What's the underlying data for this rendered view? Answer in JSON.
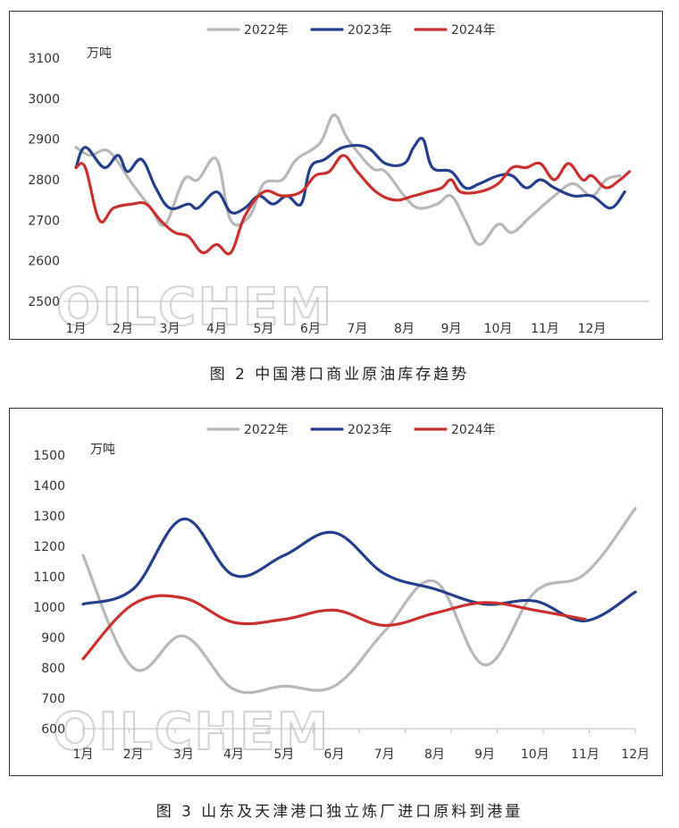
{
  "charts": [
    {
      "caption": "图 2  中国港口商业原油库存趋势",
      "unit": "万吨",
      "watermark": "OILCHEM",
      "chart_data": {
        "type": "line",
        "x_labels": [
          "1月",
          "2月",
          "3月",
          "4月",
          "5月",
          "6月",
          "7月",
          "8月",
          "9月",
          "10月",
          "11月",
          "12月"
        ],
        "ylim": [
          2500,
          3100
        ],
        "yticks": [
          2500,
          2600,
          2700,
          2800,
          2900,
          3000,
          3100
        ],
        "legend_position": "top",
        "series": [
          {
            "name": "2022年",
            "color": "#b8b8b8",
            "points": [
              [
                1,
                2880
              ],
              [
                1.3,
                2860
              ],
              [
                1.7,
                2870
              ],
              [
                2.2,
                2790
              ],
              [
                2.6,
                2730
              ],
              [
                2.9,
                2690
              ],
              [
                3.3,
                2800
              ],
              [
                3.6,
                2800
              ],
              [
                4.0,
                2850
              ],
              [
                4.3,
                2700
              ],
              [
                4.7,
                2710
              ],
              [
                5.0,
                2790
              ],
              [
                5.4,
                2800
              ],
              [
                5.7,
                2850
              ],
              [
                6.2,
                2890
              ],
              [
                6.5,
                2960
              ],
              [
                6.8,
                2900
              ],
              [
                7.3,
                2830
              ],
              [
                7.6,
                2820
              ],
              [
                8.0,
                2760
              ],
              [
                8.3,
                2730
              ],
              [
                8.7,
                2740
              ],
              [
                9.0,
                2760
              ],
              [
                9.3,
                2700
              ],
              [
                9.6,
                2640
              ],
              [
                10.0,
                2690
              ],
              [
                10.3,
                2670
              ],
              [
                10.7,
                2710
              ],
              [
                11.2,
                2760
              ],
              [
                11.6,
                2790
              ],
              [
                12.0,
                2760
              ],
              [
                12.3,
                2800
              ],
              [
                12.6,
                2810
              ]
            ]
          },
          {
            "name": "2023年",
            "color": "#253f8a",
            "points": [
              [
                1,
                2830
              ],
              [
                1.2,
                2880
              ],
              [
                1.6,
                2830
              ],
              [
                1.9,
                2860
              ],
              [
                2.1,
                2820
              ],
              [
                2.4,
                2850
              ],
              [
                2.7,
                2780
              ],
              [
                3.0,
                2730
              ],
              [
                3.4,
                2740
              ],
              [
                3.6,
                2730
              ],
              [
                4.0,
                2770
              ],
              [
                4.3,
                2720
              ],
              [
                4.6,
                2730
              ],
              [
                4.9,
                2760
              ],
              [
                5.2,
                2740
              ],
              [
                5.5,
                2760
              ],
              [
                5.8,
                2740
              ],
              [
                6.0,
                2830
              ],
              [
                6.3,
                2850
              ],
              [
                6.7,
                2880
              ],
              [
                7.2,
                2880
              ],
              [
                7.6,
                2840
              ],
              [
                8.0,
                2840
              ],
              [
                8.2,
                2880
              ],
              [
                8.4,
                2900
              ],
              [
                8.6,
                2830
              ],
              [
                9.0,
                2820
              ],
              [
                9.3,
                2780
              ],
              [
                9.6,
                2790
              ],
              [
                10.0,
                2810
              ],
              [
                10.3,
                2810
              ],
              [
                10.6,
                2780
              ],
              [
                10.9,
                2800
              ],
              [
                11.2,
                2780
              ],
              [
                11.6,
                2760
              ],
              [
                12.0,
                2760
              ],
              [
                12.4,
                2730
              ],
              [
                12.7,
                2770
              ]
            ]
          },
          {
            "name": "2024年",
            "color": "#c8312e",
            "points": [
              [
                1,
                2830
              ],
              [
                1.2,
                2830
              ],
              [
                1.5,
                2700
              ],
              [
                1.8,
                2730
              ],
              [
                2.2,
                2740
              ],
              [
                2.5,
                2740
              ],
              [
                2.8,
                2700
              ],
              [
                3.1,
                2670
              ],
              [
                3.4,
                2660
              ],
              [
                3.7,
                2620
              ],
              [
                4.0,
                2640
              ],
              [
                4.3,
                2620
              ],
              [
                4.6,
                2710
              ],
              [
                5.0,
                2770
              ],
              [
                5.4,
                2760
              ],
              [
                5.8,
                2770
              ],
              [
                6.1,
                2810
              ],
              [
                6.4,
                2820
              ],
              [
                6.7,
                2860
              ],
              [
                7.0,
                2820
              ],
              [
                7.4,
                2770
              ],
              [
                7.8,
                2750
              ],
              [
                8.2,
                2760
              ],
              [
                8.5,
                2770
              ],
              [
                8.8,
                2780
              ],
              [
                9.0,
                2800
              ],
              [
                9.2,
                2770
              ],
              [
                9.6,
                2770
              ],
              [
                10.0,
                2790
              ],
              [
                10.3,
                2830
              ],
              [
                10.6,
                2830
              ],
              [
                10.9,
                2840
              ],
              [
                11.2,
                2800
              ],
              [
                11.5,
                2840
              ],
              [
                11.8,
                2800
              ],
              [
                12.0,
                2810
              ],
              [
                12.3,
                2780
              ],
              [
                12.6,
                2800
              ],
              [
                12.8,
                2820
              ]
            ]
          }
        ]
      }
    },
    {
      "caption": "图 3  山东及天津港口独立炼厂进口原料到港量",
      "unit": "万吨",
      "watermark": "OILCHEM",
      "chart_data": {
        "type": "line",
        "x_labels": [
          "1月",
          "2月",
          "3月",
          "4月",
          "5月",
          "6月",
          "7月",
          "8月",
          "9月",
          "10月",
          "11月",
          "12月"
        ],
        "ylim": [
          600,
          1500
        ],
        "yticks": [
          600,
          700,
          800,
          900,
          1000,
          1100,
          1200,
          1300,
          1400,
          1500
        ],
        "legend_position": "top",
        "series": [
          {
            "name": "2022年",
            "color": "#b8b8b8",
            "points": [
              [
                1,
                1170
              ],
              [
                2,
                800
              ],
              [
                3,
                905
              ],
              [
                4,
                730
              ],
              [
                5,
                740
              ],
              [
                6,
                740
              ],
              [
                7,
                920
              ],
              [
                8,
                1085
              ],
              [
                9,
                810
              ],
              [
                10,
                1050
              ],
              [
                11,
                1110
              ],
              [
                12,
                1325
              ]
            ]
          },
          {
            "name": "2023年",
            "color": "#253f8a",
            "points": [
              [
                1,
                1010
              ],
              [
                2,
                1060
              ],
              [
                3,
                1290
              ],
              [
                4,
                1105
              ],
              [
                5,
                1170
              ],
              [
                6,
                1245
              ],
              [
                7,
                1110
              ],
              [
                8,
                1060
              ],
              [
                9,
                1010
              ],
              [
                10,
                1020
              ],
              [
                11,
                955
              ],
              [
                12,
                1050
              ]
            ]
          },
          {
            "name": "2024年",
            "color": "#c8312e",
            "points": [
              [
                1,
                830
              ],
              [
                2,
                1010
              ],
              [
                3,
                1030
              ],
              [
                4,
                950
              ],
              [
                5,
                960
              ],
              [
                6,
                990
              ],
              [
                7,
                940
              ],
              [
                8,
                980
              ],
              [
                9,
                1015
              ],
              [
                10,
                990
              ],
              [
                11,
                960
              ]
            ]
          }
        ]
      }
    }
  ]
}
